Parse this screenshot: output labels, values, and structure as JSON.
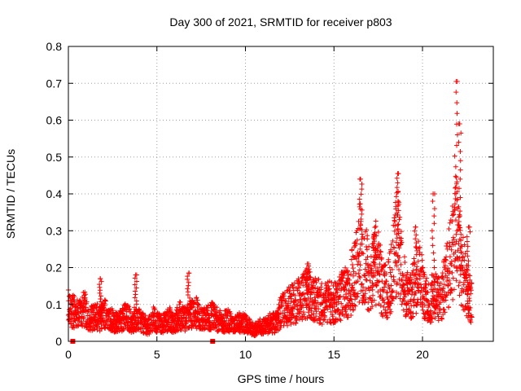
{
  "chart_data": {
    "type": "scatter",
    "title": "Day 300 of 2021, SRMTID for receiver p803",
    "xlabel": "GPS time / hours",
    "ylabel": "SRMTID / TECUs",
    "xlim": [
      0,
      24
    ],
    "ylim": [
      0,
      0.8
    ],
    "xticks": [
      0,
      5,
      10,
      15,
      20
    ],
    "xtick_labels": [
      "0",
      "5",
      "10",
      "15",
      "20"
    ],
    "yticks": [
      0,
      0.1,
      0.2,
      0.3,
      0.4,
      0.5,
      0.6,
      0.7,
      0.8
    ],
    "ytick_labels": [
      "0",
      "0.1",
      "0.2",
      "0.3",
      "0.4",
      "0.5",
      "0.6",
      "0.7",
      "0.8"
    ],
    "grid": true,
    "marker": "+",
    "series": [
      {
        "name": "SRMTID",
        "color": "#ff0000",
        "x": [
          0.0,
          0.3,
          0.6,
          0.9,
          1.2,
          1.5,
          1.8,
          2.1,
          2.4,
          2.7,
          3.0,
          3.3,
          3.6,
          3.9,
          4.2,
          4.5,
          4.8,
          5.1,
          5.4,
          5.7,
          6.0,
          6.3,
          6.6,
          6.9,
          7.2,
          7.5,
          7.8,
          8.1,
          8.4,
          8.7,
          9.0,
          9.3,
          9.6,
          9.9,
          10.2,
          10.5,
          10.8,
          11.1,
          11.4,
          11.7,
          12.0,
          12.3,
          12.6,
          12.9,
          13.2,
          13.5,
          13.8,
          14.1,
          14.4,
          14.7,
          15.0,
          15.3,
          15.6,
          15.9,
          16.2,
          16.5,
          16.8,
          17.1,
          17.4,
          17.7,
          18.0,
          18.3,
          18.6,
          18.9,
          19.2,
          19.5,
          19.8,
          20.1,
          20.4,
          20.7,
          21.0,
          21.3,
          21.6,
          21.9,
          22.2,
          22.5,
          22.8
        ],
        "y": [
          0.09,
          0.08,
          0.07,
          0.09,
          0.06,
          0.07,
          0.06,
          0.08,
          0.06,
          0.05,
          0.06,
          0.07,
          0.05,
          0.06,
          0.05,
          0.04,
          0.06,
          0.05,
          0.05,
          0.06,
          0.05,
          0.07,
          0.06,
          0.07,
          0.08,
          0.06,
          0.06,
          0.07,
          0.06,
          0.05,
          0.06,
          0.04,
          0.05,
          0.05,
          0.04,
          0.03,
          0.04,
          0.04,
          0.05,
          0.05,
          0.08,
          0.09,
          0.1,
          0.11,
          0.12,
          0.13,
          0.12,
          0.11,
          0.1,
          0.11,
          0.1,
          0.12,
          0.13,
          0.15,
          0.18,
          0.25,
          0.2,
          0.17,
          0.22,
          0.15,
          0.13,
          0.19,
          0.28,
          0.16,
          0.12,
          0.14,
          0.2,
          0.12,
          0.1,
          0.13,
          0.11,
          0.16,
          0.22,
          0.3,
          0.21,
          0.14,
          0.1
        ],
        "peaks": [
          {
            "x": 1.8,
            "y": 0.17
          },
          {
            "x": 3.8,
            "y": 0.18
          },
          {
            "x": 6.8,
            "y": 0.185
          },
          {
            "x": 13.5,
            "y": 0.21
          },
          {
            "x": 16.5,
            "y": 0.44
          },
          {
            "x": 17.3,
            "y": 0.29
          },
          {
            "x": 18.6,
            "y": 0.455
          },
          {
            "x": 19.6,
            "y": 0.31
          },
          {
            "x": 20.6,
            "y": 0.4
          },
          {
            "x": 21.9,
            "y": 0.705
          },
          {
            "x": 22.1,
            "y": 0.59
          },
          {
            "x": 22.6,
            "y": 0.31
          }
        ]
      }
    ],
    "markers_on_axis": [
      {
        "x": 0.25,
        "y": 0.0
      },
      {
        "x": 8.15,
        "y": 0.0
      }
    ]
  }
}
